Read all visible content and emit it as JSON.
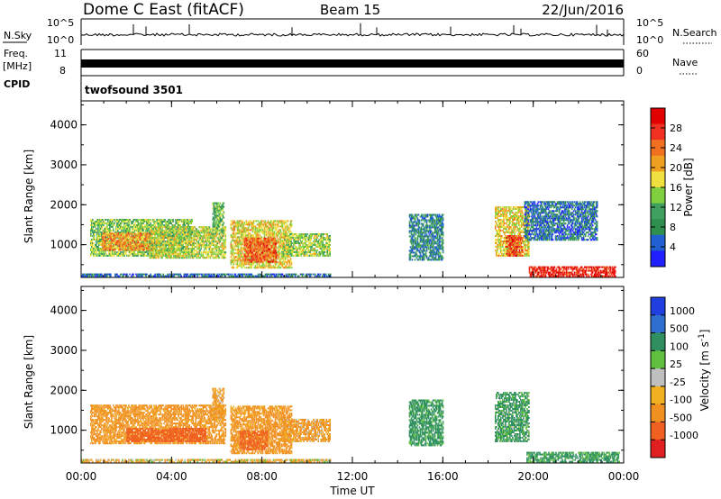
{
  "header": {
    "station": "Dome C East (fitACF)",
    "beam": "Beam 15",
    "date": "22/Jun/2016"
  },
  "summary_panels": {
    "nsky_label": "N.Sky",
    "nsky_ticks": [
      "10^5",
      "10^0"
    ],
    "nsearch_label": "N.Search",
    "nsearch_ticks": [
      "10^5",
      "10^0"
    ],
    "freq_label_1": "Freq.",
    "freq_label_2": "[MHz]",
    "freq_ticks": [
      "11",
      "8"
    ],
    "nave_label": "Nave",
    "nave_ticks": [
      "60",
      "0"
    ],
    "cpid_label": "CPID",
    "cpid_value": "twofsound 3501"
  },
  "colors": {
    "power_scale": [
      "#1f1fff",
      "#2060d0",
      "#2f8f4f",
      "#3fa060",
      "#7fcf3f",
      "#efdf3f",
      "#f0a020",
      "#f07020",
      "#f03020",
      "#e00000"
    ],
    "velocity_scale": [
      "#1f3fdf",
      "#2f6fcf",
      "#2f8f5f",
      "#5fbf3f",
      "#bfbfbf",
      "#f0b020",
      "#f09020",
      "#f06020",
      "#e02020"
    ]
  },
  "chart_data": [
    {
      "type": "heatmap",
      "panel": "power",
      "xlabel": "",
      "ylabel": "Slant Range [km]",
      "x_ticks": [
        "00:00",
        "04:00",
        "08:00",
        "12:00",
        "16:00",
        "20:00",
        "00:00"
      ],
      "y_ticks": [
        "1000",
        "2000",
        "3000",
        "4000"
      ],
      "ylim": [
        180,
        4600
      ],
      "xlim_hours": [
        0,
        24
      ],
      "colorbar_label": "Power [dB]",
      "colorbar_ticks": [
        "4",
        "8",
        "12",
        "16",
        "20",
        "24",
        "28"
      ],
      "colorbar_range": [
        0,
        32
      ],
      "regions": [
        {
          "t0": 0.4,
          "t1": 4.9,
          "r0": 700,
          "r1": 1650,
          "level": 14
        },
        {
          "t0": 0.9,
          "t1": 3.2,
          "r0": 850,
          "r1": 1300,
          "level": 22
        },
        {
          "t0": 3.0,
          "t1": 6.4,
          "r0": 650,
          "r1": 1500,
          "level": 16
        },
        {
          "t0": 5.8,
          "t1": 6.3,
          "r0": 1250,
          "r1": 2100,
          "level": 12
        },
        {
          "t0": 6.6,
          "t1": 9.3,
          "r0": 400,
          "r1": 1650,
          "level": 18
        },
        {
          "t0": 7.2,
          "t1": 8.6,
          "r0": 550,
          "r1": 1200,
          "level": 25
        },
        {
          "t0": 8.9,
          "t1": 11.0,
          "r0": 700,
          "r1": 1300,
          "level": 15
        },
        {
          "t0": 14.5,
          "t1": 16.0,
          "r0": 600,
          "r1": 1800,
          "level": 8
        },
        {
          "t0": 18.3,
          "t1": 19.8,
          "r0": 700,
          "r1": 2000,
          "level": 18
        },
        {
          "t0": 18.8,
          "t1": 19.5,
          "r0": 700,
          "r1": 1250,
          "level": 27
        },
        {
          "t0": 19.6,
          "t1": 22.8,
          "r0": 1100,
          "r1": 2100,
          "level": 6
        },
        {
          "t0": 19.8,
          "t1": 23.6,
          "r0": 190,
          "r1": 460,
          "level": 29
        },
        {
          "t0": 0.0,
          "t1": 11.0,
          "r0": 190,
          "r1": 320,
          "level": 6
        }
      ]
    },
    {
      "type": "heatmap",
      "panel": "velocity",
      "xlabel": "Time UT",
      "ylabel": "Slant Range [km]",
      "x_ticks": [
        "00:00",
        "04:00",
        "08:00",
        "12:00",
        "16:00",
        "20:00",
        "00:00"
      ],
      "y_ticks": [
        "1000",
        "2000",
        "3000",
        "4000"
      ],
      "ylim": [
        180,
        4600
      ],
      "xlim_hours": [
        0,
        24
      ],
      "colorbar_label": "Velocity [m s^-1]",
      "colorbar_ticks": [
        "1000",
        "500",
        "100",
        "25",
        "-25",
        "-100",
        "-500",
        "-1000"
      ],
      "regions": [
        {
          "t0": 0.4,
          "t1": 6.4,
          "r0": 650,
          "r1": 1650,
          "level": -200
        },
        {
          "t0": 2.0,
          "t1": 5.5,
          "r0": 700,
          "r1": 1100,
          "level": -700
        },
        {
          "t0": 5.8,
          "t1": 6.3,
          "r0": 1250,
          "r1": 2100,
          "level": -150
        },
        {
          "t0": 6.6,
          "t1": 9.3,
          "r0": 400,
          "r1": 1650,
          "level": -200
        },
        {
          "t0": 7.0,
          "t1": 8.2,
          "r0": 500,
          "r1": 1000,
          "level": -600
        },
        {
          "t0": 8.9,
          "t1": 11.0,
          "r0": 700,
          "r1": 1300,
          "level": -150
        },
        {
          "t0": 14.5,
          "t1": 16.0,
          "r0": 600,
          "r1": 1800,
          "level": 200
        },
        {
          "t0": 18.3,
          "t1": 19.8,
          "r0": 700,
          "r1": 2000,
          "level": 150
        },
        {
          "t0": 19.7,
          "t1": 23.8,
          "r0": 190,
          "r1": 500,
          "level": 180
        },
        {
          "t0": 0.0,
          "t1": 11.0,
          "r0": 190,
          "r1": 300,
          "level": -60
        }
      ]
    }
  ]
}
